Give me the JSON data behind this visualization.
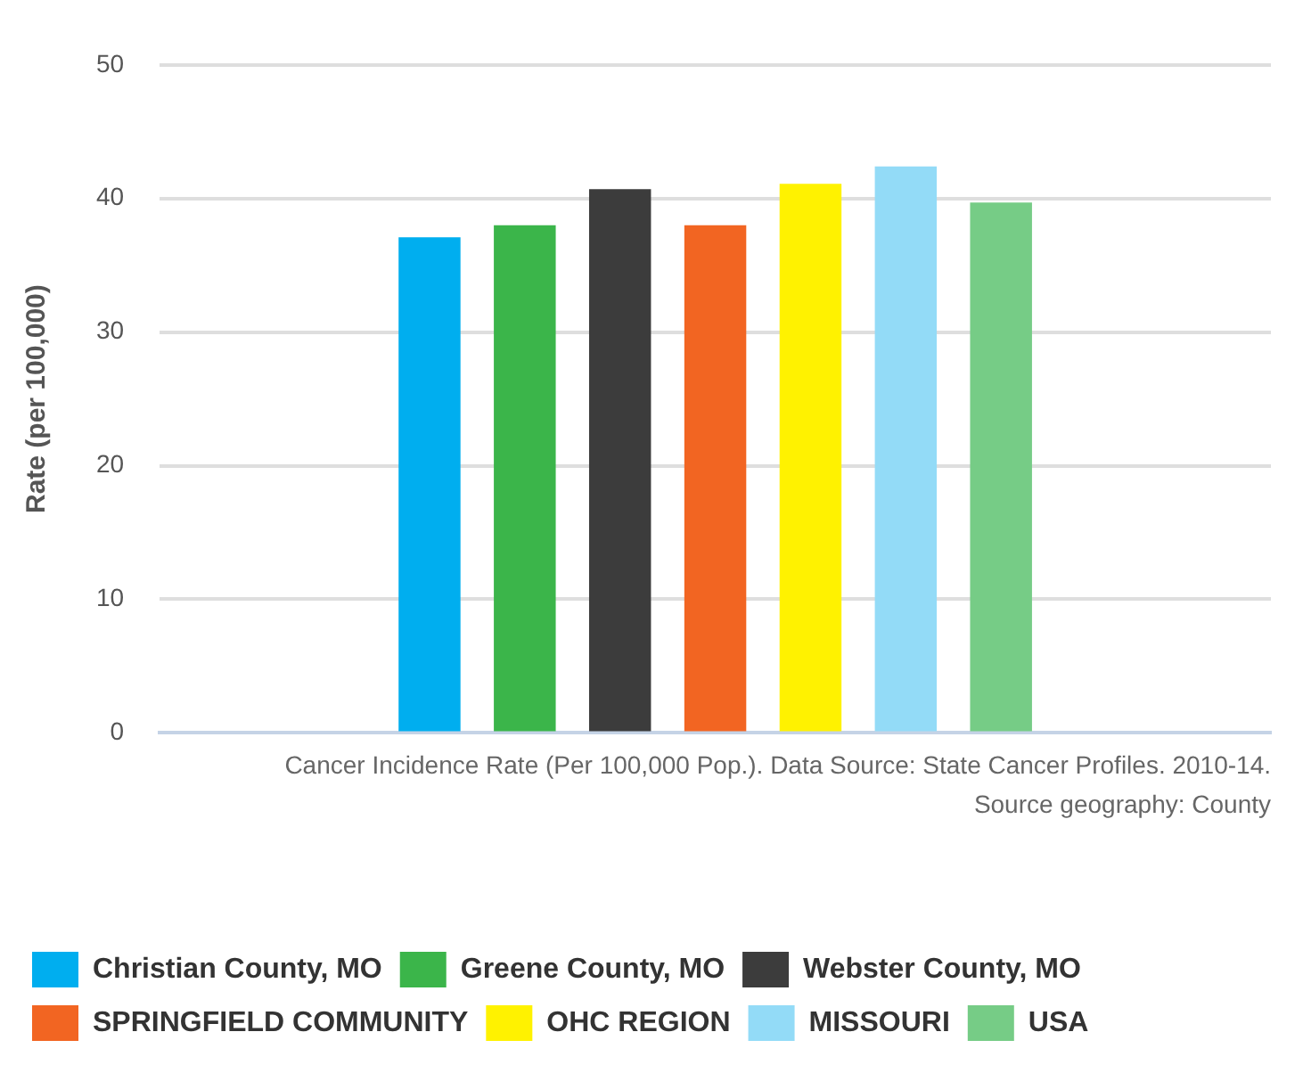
{
  "chart_data": {
    "type": "bar",
    "ylabel": "Rate (per 100,000)",
    "categories": [
      null
    ],
    "series": [
      {
        "name": "Christian County, MO",
        "color": "#00aeef",
        "values": [
          37.1
        ]
      },
      {
        "name": "Greene County, MO",
        "color": "#3bb54a",
        "values": [
          38.0
        ]
      },
      {
        "name": "Webster County, MO",
        "color": "#3c3c3c",
        "values": [
          40.7
        ]
      },
      {
        "name": "SPRINGFIELD COMMUNITY",
        "color": "#f26522",
        "values": [
          38.0
        ]
      },
      {
        "name": "OHC REGION",
        "color": "#fff200",
        "values": [
          41.1
        ]
      },
      {
        "name": "MISSOURI",
        "color": "#93dbf7",
        "values": [
          42.4
        ]
      },
      {
        "name": "USA",
        "color": "#76cc86",
        "values": [
          39.7
        ]
      }
    ],
    "ylim": [
      0,
      50
    ],
    "yticks": [
      0,
      10,
      20,
      30,
      40,
      50
    ],
    "grid": "y",
    "legend": "bottom",
    "annotations": [
      "Cancer Incidence Rate (Per 100,000 Pop.). Data Source: State Cancer Profiles. 2010-14.",
      "Source geography: County"
    ]
  }
}
